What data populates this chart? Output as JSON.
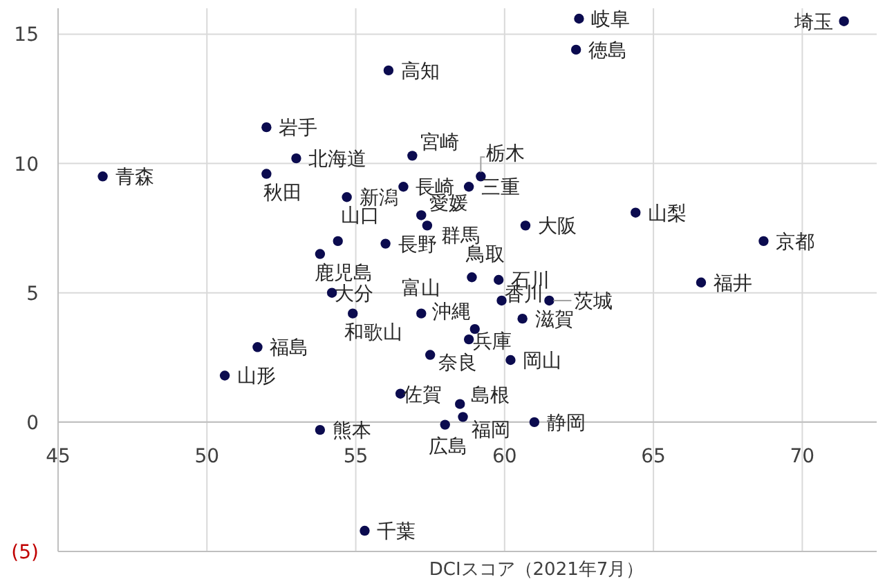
{
  "chart_data": {
    "type": "scatter",
    "xlabel": "DCIスコア（2021年7月）",
    "xlim": [
      45,
      72.5
    ],
    "ylim": [
      -5,
      16
    ],
    "xticks": [
      45,
      50,
      55,
      60,
      65,
      70
    ],
    "yticks": [
      {
        "value": -5,
        "label": "(5)"
      },
      0,
      5,
      10,
      15
    ],
    "grid": true,
    "marker": "circle",
    "series": [
      {
        "color": "#0b0b4f",
        "x": [
          46.5,
          52.0,
          53.0,
          52.0,
          56.9,
          56.1,
          56.6,
          54.7,
          57.2,
          57.4,
          54.4,
          56.0,
          53.8,
          54.2,
          54.9,
          57.2,
          51.7,
          50.6,
          57.5,
          56.5,
          53.8,
          58.0,
          55.3,
          62.5,
          62.4,
          71.4,
          59.2,
          58.8,
          64.4,
          60.7,
          68.7,
          58.9,
          59.8,
          66.6,
          59.9,
          61.5,
          59.0,
          60.6,
          58.8,
          60.2,
          58.5,
          58.6,
          61.0
        ],
        "values": [
          9.5,
          11.4,
          10.2,
          9.6,
          10.3,
          13.6,
          9.1,
          8.7,
          8.0,
          7.6,
          7.0,
          6.9,
          6.5,
          5.0,
          4.2,
          4.2,
          2.9,
          1.8,
          2.6,
          1.1,
          -0.3,
          -0.1,
          -4.2,
          15.6,
          14.4,
          15.5,
          9.5,
          9.1,
          8.1,
          7.6,
          7.0,
          5.6,
          5.5,
          5.4,
          4.7,
          4.7,
          3.6,
          4.0,
          3.2,
          2.4,
          0.7,
          0.2,
          0.0
        ]
      }
    ],
    "annotations": [
      {
        "text": "青森",
        "x": 46.5,
        "y": 9.5
      },
      {
        "text": "岩手",
        "x": 52.0,
        "y": 11.4
      },
      {
        "text": "北海道",
        "x": 53.0,
        "y": 10.2
      },
      {
        "text": "秋田",
        "x": 52.0,
        "y": 9.6
      },
      {
        "text": "宮崎",
        "x": 56.9,
        "y": 10.3
      },
      {
        "text": "高知",
        "x": 56.1,
        "y": 13.6
      },
      {
        "text": "長崎",
        "x": 56.6,
        "y": 9.1
      },
      {
        "text": "新潟",
        "x": 54.7,
        "y": 8.7
      },
      {
        "text": "愛媛",
        "x": 57.2,
        "y": 8.0
      },
      {
        "text": "群馬",
        "x": 57.4,
        "y": 7.6
      },
      {
        "text": "山口",
        "x": 54.4,
        "y": 7.0
      },
      {
        "text": "長野",
        "x": 56.0,
        "y": 6.9
      },
      {
        "text": "鹿児島",
        "x": 53.8,
        "y": 6.5
      },
      {
        "text": "大分",
        "x": 54.2,
        "y": 5.0
      },
      {
        "text": "和歌山",
        "x": 54.9,
        "y": 4.2
      },
      {
        "text": "富山",
        "x": 57.2,
        "y": 4.2
      },
      {
        "text": "福島",
        "x": 51.7,
        "y": 2.9
      },
      {
        "text": "山形",
        "x": 50.6,
        "y": 1.8
      },
      {
        "text": "奈良",
        "x": 57.5,
        "y": 2.6
      },
      {
        "text": "佐賀",
        "x": 56.5,
        "y": 1.1
      },
      {
        "text": "熊本",
        "x": 53.8,
        "y": -0.3
      },
      {
        "text": "広島",
        "x": 58.0,
        "y": -0.1
      },
      {
        "text": "千葉",
        "x": 55.3,
        "y": -4.2
      },
      {
        "text": "岐阜",
        "x": 62.5,
        "y": 15.6
      },
      {
        "text": "徳島",
        "x": 62.4,
        "y": 14.4
      },
      {
        "text": "埼玉",
        "x": 71.4,
        "y": 15.5
      },
      {
        "text": "栃木",
        "x": 59.2,
        "y": 9.5
      },
      {
        "text": "三重",
        "x": 58.8,
        "y": 9.1
      },
      {
        "text": "山梨",
        "x": 64.4,
        "y": 8.1
      },
      {
        "text": "大阪",
        "x": 60.7,
        "y": 7.6
      },
      {
        "text": "京都",
        "x": 68.7,
        "y": 7.0
      },
      {
        "text": "鳥取",
        "x": 58.9,
        "y": 5.6
      },
      {
        "text": "石川",
        "x": 59.8,
        "y": 5.5
      },
      {
        "text": "福井",
        "x": 66.6,
        "y": 5.4
      },
      {
        "text": "香川",
        "x": 59.9,
        "y": 4.7
      },
      {
        "text": "茨城",
        "x": 61.5,
        "y": 4.7
      },
      {
        "text": "沖縄",
        "x": 59.0,
        "y": 3.6
      },
      {
        "text": "滋賀",
        "x": 60.6,
        "y": 4.0
      },
      {
        "text": "兵庫",
        "x": 58.8,
        "y": 3.2
      },
      {
        "text": "岡山",
        "x": 60.2,
        "y": 2.4
      },
      {
        "text": "島根",
        "x": 58.5,
        "y": 0.7
      },
      {
        "text": "福岡",
        "x": 58.6,
        "y": 0.2
      },
      {
        "text": "静岡",
        "x": 61.0,
        "y": 0.0
      }
    ]
  }
}
